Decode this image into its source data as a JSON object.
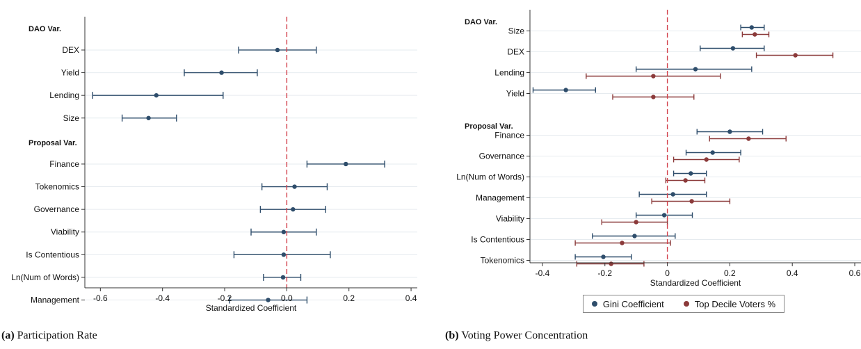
{
  "chart_data": [
    {
      "type": "scatter",
      "panel": "a",
      "caption_tag": "(a)",
      "caption_text": "Participation Rate",
      "xlabel": "Standardized Coefficient",
      "ylabel": "",
      "xlim": [
        -0.65,
        0.42
      ],
      "xticks": [
        -0.6,
        -0.4,
        -0.2,
        0.0,
        0.2,
        0.4
      ],
      "xtick_labels": [
        "-0.6",
        "-0.4",
        "-0.2",
        "0.0",
        "0.2",
        "0.4"
      ],
      "zero_line": 0,
      "grid": true,
      "groups": [
        {
          "header": "DAO Var.",
          "rows": [
            {
              "label": "DEX",
              "estimate": -0.03,
              "ci": [
                -0.155,
                0.095
              ]
            },
            {
              "label": "Yield",
              "estimate": -0.21,
              "ci": [
                -0.33,
                -0.095
              ]
            },
            {
              "label": "Lending",
              "estimate": -0.42,
              "ci": [
                -0.625,
                -0.205
              ]
            },
            {
              "label": "Size",
              "estimate": -0.445,
              "ci": [
                -0.53,
                -0.355
              ]
            }
          ]
        },
        {
          "header": "Proposal Var.",
          "rows": [
            {
              "label": "Finance",
              "estimate": 0.19,
              "ci": [
                0.065,
                0.315
              ]
            },
            {
              "label": "Tokenomics",
              "estimate": 0.025,
              "ci": [
                -0.08,
                0.13
              ]
            },
            {
              "label": "Governance",
              "estimate": 0.02,
              "ci": [
                -0.085,
                0.125
              ]
            },
            {
              "label": "Viability",
              "estimate": -0.01,
              "ci": [
                -0.115,
                0.095
              ]
            },
            {
              "label": "Is Contentious",
              "estimate": -0.01,
              "ci": [
                -0.17,
                0.14
              ]
            },
            {
              "label": "Ln(Num of Words)",
              "estimate": -0.012,
              "ci": [
                -0.075,
                0.045
              ]
            },
            {
              "label": "Management",
              "estimate": -0.06,
              "ci": [
                -0.185,
                0.065
              ]
            }
          ]
        }
      ],
      "series": [
        {
          "color": "#2e4d6b"
        }
      ]
    },
    {
      "type": "scatter",
      "panel": "b",
      "caption_tag": "(b)",
      "caption_text": "Voting Power Concentration",
      "xlabel": "Standardized Coefficient",
      "ylabel": "",
      "xlim": [
        -0.44,
        0.62
      ],
      "xticks": [
        -0.4,
        -0.2,
        0.0,
        0.2,
        0.4,
        0.6
      ],
      "xtick_labels": [
        "-0.4",
        "-0.2",
        "0",
        "0.2",
        "0.4",
        "0.6"
      ],
      "zero_line": 0,
      "grid": true,
      "legend_position": "bottom",
      "series": [
        {
          "name": "Gini Coefficient",
          "color": "#2e4d6b"
        },
        {
          "name": "Top Decile Voters %",
          "color": "#8b3a3a"
        }
      ],
      "groups": [
        {
          "header": "DAO Var.",
          "rows": [
            {
              "label": "Size",
              "estimates": [
                {
                  "estimate": 0.27,
                  "ci": [
                    0.235,
                    0.31
                  ]
                },
                {
                  "estimate": 0.28,
                  "ci": [
                    0.24,
                    0.325
                  ]
                }
              ]
            },
            {
              "label": "DEX",
              "estimates": [
                {
                  "estimate": 0.21,
                  "ci": [
                    0.105,
                    0.31
                  ]
                },
                {
                  "estimate": 0.41,
                  "ci": [
                    0.285,
                    0.53
                  ]
                }
              ]
            },
            {
              "label": "Lending",
              "estimates": [
                {
                  "estimate": 0.09,
                  "ci": [
                    -0.1,
                    0.27
                  ]
                },
                {
                  "estimate": -0.045,
                  "ci": [
                    -0.26,
                    0.17
                  ]
                }
              ]
            },
            {
              "label": "Yield",
              "estimates": [
                {
                  "estimate": -0.325,
                  "ci": [
                    -0.43,
                    -0.23
                  ]
                },
                {
                  "estimate": -0.045,
                  "ci": [
                    -0.175,
                    0.085
                  ]
                }
              ]
            }
          ]
        },
        {
          "header": "Proposal Var.",
          "rows": [
            {
              "label": "Finance",
              "estimates": [
                {
                  "estimate": 0.2,
                  "ci": [
                    0.095,
                    0.305
                  ]
                },
                {
                  "estimate": 0.26,
                  "ci": [
                    0.135,
                    0.38
                  ]
                }
              ]
            },
            {
              "label": "Governance",
              "estimates": [
                {
                  "estimate": 0.145,
                  "ci": [
                    0.06,
                    0.235
                  ]
                },
                {
                  "estimate": 0.125,
                  "ci": [
                    0.02,
                    0.23
                  ]
                }
              ]
            },
            {
              "label": "Ln(Num of Words)",
              "estimates": [
                {
                  "estimate": 0.075,
                  "ci": [
                    0.02,
                    0.125
                  ]
                },
                {
                  "estimate": 0.058,
                  "ci": [
                    -0.005,
                    0.12
                  ]
                }
              ]
            },
            {
              "label": "Management",
              "estimates": [
                {
                  "estimate": 0.018,
                  "ci": [
                    -0.09,
                    0.125
                  ]
                },
                {
                  "estimate": 0.078,
                  "ci": [
                    -0.05,
                    0.2
                  ]
                }
              ]
            },
            {
              "label": "Viability",
              "estimates": [
                {
                  "estimate": -0.01,
                  "ci": [
                    -0.1,
                    0.08
                  ]
                },
                {
                  "estimate": -0.1,
                  "ci": [
                    -0.21,
                    0.0
                  ]
                }
              ]
            },
            {
              "label": "Is Contentious",
              "estimates": [
                {
                  "estimate": -0.105,
                  "ci": [
                    -0.24,
                    0.025
                  ]
                },
                {
                  "estimate": -0.145,
                  "ci": [
                    -0.295,
                    0.01
                  ]
                }
              ]
            },
            {
              "label": "Tokenomics",
              "estimates": [
                {
                  "estimate": -0.205,
                  "ci": [
                    -0.295,
                    -0.115
                  ]
                },
                {
                  "estimate": -0.18,
                  "ci": [
                    -0.29,
                    -0.075
                  ]
                }
              ]
            }
          ]
        }
      ]
    }
  ]
}
